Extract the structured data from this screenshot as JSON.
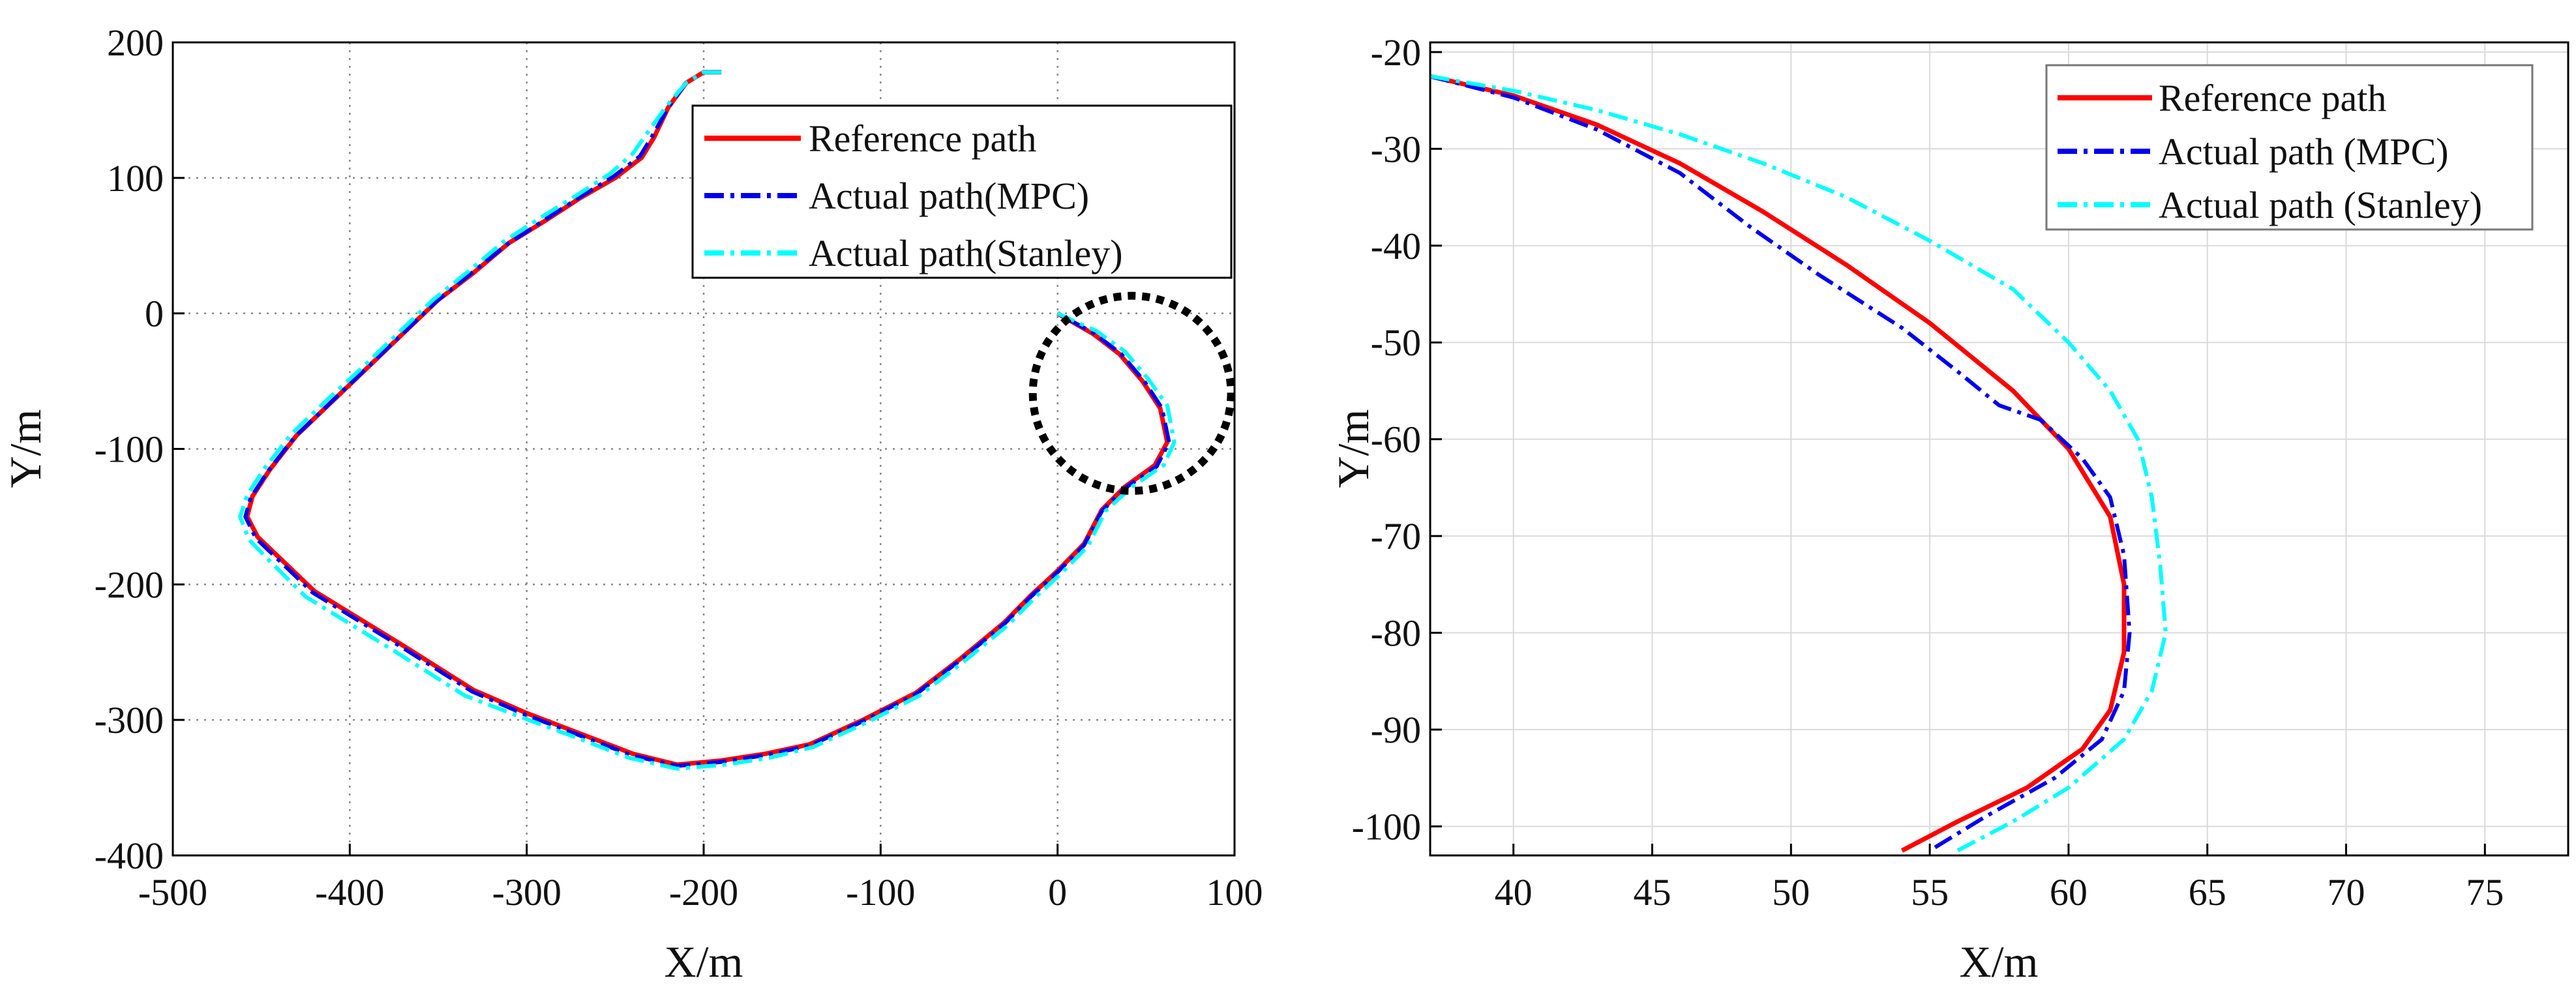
{
  "chart_data": [
    {
      "type": "line",
      "xlabel": "X/m",
      "ylabel": "Y/m",
      "xlim": [
        -500,
        100
      ],
      "ylim": [
        -400,
        200
      ],
      "xticks": [
        -500,
        -400,
        -300,
        -200,
        -100,
        0,
        100
      ],
      "yticks": [
        -400,
        -300,
        -200,
        -100,
        0,
        100,
        200
      ],
      "xtick_labels": [
        "-500",
        "-400",
        "-300",
        "-200",
        "-100",
        "0",
        "100"
      ],
      "ytick_labels": [
        "-400",
        "-300",
        "-200",
        "-100",
        "0",
        "100",
        "200"
      ],
      "grid": true,
      "grid_style": "dotted",
      "legend_position": "top-right",
      "annotation": "dotted circle around region X 0 to 100, Y -130 to 10",
      "annotation_circle": {
        "cx": 42,
        "cy": -59,
        "rx": 56,
        "ry": 72
      },
      "series": [
        {
          "name": "Reference path",
          "color": "#ff0000",
          "style": "solid",
          "points": [
            [
              -190,
              178
            ],
            [
              -200,
              178
            ],
            [
              -210,
              170
            ],
            [
              -220,
              152
            ],
            [
              -228,
              130
            ],
            [
              -235,
              115
            ],
            [
              -250,
              100
            ],
            [
              -270,
              85
            ],
            [
              -290,
              68
            ],
            [
              -310,
              52
            ],
            [
              -330,
              30
            ],
            [
              -350,
              10
            ],
            [
              -370,
              -15
            ],
            [
              -390,
              -40
            ],
            [
              -410,
              -65
            ],
            [
              -430,
              -90
            ],
            [
              -445,
              -115
            ],
            [
              -455,
              -135
            ],
            [
              -458,
              -150
            ],
            [
              -452,
              -165
            ],
            [
              -440,
              -180
            ],
            [
              -420,
              -205
            ],
            [
              -395,
              -225
            ],
            [
              -370,
              -245
            ],
            [
              -330,
              -278
            ],
            [
              -300,
              -295
            ],
            [
              -270,
              -310
            ],
            [
              -240,
              -325
            ],
            [
              -215,
              -333
            ],
            [
              -190,
              -330
            ],
            [
              -165,
              -325
            ],
            [
              -140,
              -318
            ],
            [
              -110,
              -300
            ],
            [
              -80,
              -280
            ],
            [
              -55,
              -255
            ],
            [
              -30,
              -228
            ],
            [
              -15,
              -208
            ],
            [
              0,
              -190
            ],
            [
              15,
              -170
            ],
            [
              25,
              -145
            ],
            [
              38,
              -128
            ],
            [
              55,
              -112
            ],
            [
              62,
              -95
            ],
            [
              58,
              -70
            ],
            [
              48,
              -50
            ],
            [
              35,
              -30
            ],
            [
              20,
              -15
            ],
            [
              0,
              0
            ]
          ]
        },
        {
          "name": "Actual path(MPC)",
          "color": "#0000ee",
          "style": "dashdot",
          "points": [
            [
              -190,
              178
            ],
            [
              -200,
              178
            ],
            [
              -210,
              170
            ],
            [
              -220,
              152
            ],
            [
              -229,
              131
            ],
            [
              -236,
              116
            ],
            [
              -251,
              101
            ],
            [
              -271,
              85
            ],
            [
              -291,
              68
            ],
            [
              -311,
              51
            ],
            [
              -331,
              30
            ],
            [
              -351,
              9
            ],
            [
              -371,
              -16
            ],
            [
              -391,
              -41
            ],
            [
              -411,
              -66
            ],
            [
              -431,
              -91
            ],
            [
              -446,
              -116
            ],
            [
              -456,
              -136
            ],
            [
              -459,
              -150
            ],
            [
              -453,
              -166
            ],
            [
              -441,
              -181
            ],
            [
              -421,
              -206
            ],
            [
              -396,
              -226
            ],
            [
              -371,
              -246
            ],
            [
              -331,
              -279
            ],
            [
              -301,
              -296
            ],
            [
              -271,
              -311
            ],
            [
              -241,
              -326
            ],
            [
              -215,
              -334
            ],
            [
              -190,
              -331
            ],
            [
              -165,
              -326
            ],
            [
              -140,
              -319
            ],
            [
              -110,
              -301
            ],
            [
              -80,
              -281
            ],
            [
              -55,
              -256
            ],
            [
              -30,
              -229
            ],
            [
              -15,
              -209
            ],
            [
              0,
              -191
            ],
            [
              15,
              -171
            ],
            [
              25,
              -146
            ],
            [
              38,
              -129
            ],
            [
              56,
              -113
            ],
            [
              63,
              -95
            ],
            [
              59,
              -70
            ],
            [
              49,
              -50
            ],
            [
              36,
              -30
            ],
            [
              21,
              -15
            ],
            [
              0,
              0
            ]
          ]
        },
        {
          "name": "Actual path(Stanley)",
          "color": "#00ffff",
          "style": "dashdot",
          "points": [
            [
              -190,
              178
            ],
            [
              -200,
              178
            ],
            [
              -210,
              170
            ],
            [
              -221,
              153
            ],
            [
              -232,
              133
            ],
            [
              -240,
              118
            ],
            [
              -253,
              103
            ],
            [
              -272,
              87
            ],
            [
              -293,
              70
            ],
            [
              -313,
              53
            ],
            [
              -333,
              31
            ],
            [
              -353,
              10
            ],
            [
              -373,
              -15
            ],
            [
              -393,
              -40
            ],
            [
              -413,
              -64
            ],
            [
              -433,
              -89
            ],
            [
              -448,
              -114
            ],
            [
              -458,
              -134
            ],
            [
              -462,
              -150
            ],
            [
              -457,
              -167
            ],
            [
              -445,
              -183
            ],
            [
              -425,
              -209
            ],
            [
              -400,
              -229
            ],
            [
              -375,
              -249
            ],
            [
              -335,
              -282
            ],
            [
              -303,
              -298
            ],
            [
              -272,
              -313
            ],
            [
              -242,
              -328
            ],
            [
              -215,
              -336
            ],
            [
              -188,
              -333
            ],
            [
              -163,
              -328
            ],
            [
              -138,
              -320
            ],
            [
              -108,
              -302
            ],
            [
              -78,
              -282
            ],
            [
              -53,
              -257
            ],
            [
              -28,
              -230
            ],
            [
              -13,
              -210
            ],
            [
              2,
              -192
            ],
            [
              17,
              -172
            ],
            [
              27,
              -146
            ],
            [
              42,
              -128
            ],
            [
              60,
              -112
            ],
            [
              66,
              -95
            ],
            [
              62,
              -68
            ],
            [
              51,
              -48
            ],
            [
              38,
              -28
            ],
            [
              22,
              -13
            ],
            [
              0,
              0
            ]
          ]
        }
      ]
    },
    {
      "type": "line",
      "xlabel": "X/m",
      "ylabel": "Y/m",
      "xlim": [
        37,
        78
      ],
      "ylim": [
        -103,
        -19
      ],
      "xticks": [
        40,
        45,
        50,
        55,
        60,
        65,
        70,
        75
      ],
      "yticks": [
        -100,
        -90,
        -80,
        -70,
        -60,
        -50,
        -40,
        -30,
        -20
      ],
      "xtick_labels": [
        "40",
        "45",
        "50",
        "55",
        "60",
        "65",
        "70",
        "75"
      ],
      "ytick_labels": [
        "-100",
        "-90",
        "-80",
        "-70",
        "-60",
        "-50",
        "-40",
        "-30",
        "-20"
      ],
      "grid": true,
      "grid_style": "solid light gray",
      "legend_position": "top-right",
      "series": [
        {
          "name": "Reference path",
          "color": "#ff0000",
          "style": "solid",
          "points": [
            [
              37,
              -22.5
            ],
            [
              40,
              -24.5
            ],
            [
              43,
              -27.5
            ],
            [
              46,
              -31.5
            ],
            [
              49,
              -36.5
            ],
            [
              52,
              -42
            ],
            [
              55,
              -48
            ],
            [
              58,
              -55
            ],
            [
              60,
              -61
            ],
            [
              61.5,
              -68
            ],
            [
              62,
              -75
            ],
            [
              62,
              -82
            ],
            [
              61.5,
              -88
            ],
            [
              60.5,
              -92
            ],
            [
              58.5,
              -96
            ],
            [
              56,
              -99.5
            ],
            [
              54,
              -102.5
            ]
          ]
        },
        {
          "name": "Actual path (MPC)",
          "color": "#0000ee",
          "style": "dashdot",
          "points": [
            [
              37,
              -22.5
            ],
            [
              40,
              -24.7
            ],
            [
              43,
              -28
            ],
            [
              46,
              -32.5
            ],
            [
              48.5,
              -38
            ],
            [
              51,
              -43
            ],
            [
              54,
              -48.5
            ],
            [
              56,
              -53
            ],
            [
              57.5,
              -56.5
            ],
            [
              59,
              -58
            ],
            [
              60.5,
              -62
            ],
            [
              61.5,
              -66
            ],
            [
              62,
              -72
            ],
            [
              62.2,
              -80
            ],
            [
              62,
              -86
            ],
            [
              61.2,
              -91
            ],
            [
              59.5,
              -95
            ],
            [
              57,
              -99
            ],
            [
              55,
              -102.5
            ]
          ]
        },
        {
          "name": "Actual path (Stanley)",
          "color": "#00ffff",
          "style": "dashdot",
          "points": [
            [
              37,
              -22.5
            ],
            [
              40,
              -24
            ],
            [
              43,
              -26
            ],
            [
              46,
              -28.5
            ],
            [
              49,
              -31.5
            ],
            [
              52,
              -35
            ],
            [
              55,
              -39.5
            ],
            [
              58,
              -44.5
            ],
            [
              60,
              -50
            ],
            [
              61.5,
              -55
            ],
            [
              62.5,
              -60
            ],
            [
              63,
              -66
            ],
            [
              63.3,
              -73
            ],
            [
              63.5,
              -80
            ],
            [
              63,
              -86
            ],
            [
              62,
              -91
            ],
            [
              60,
              -96
            ],
            [
              58,
              -99.5
            ],
            [
              56,
              -102.5
            ]
          ]
        }
      ]
    }
  ]
}
